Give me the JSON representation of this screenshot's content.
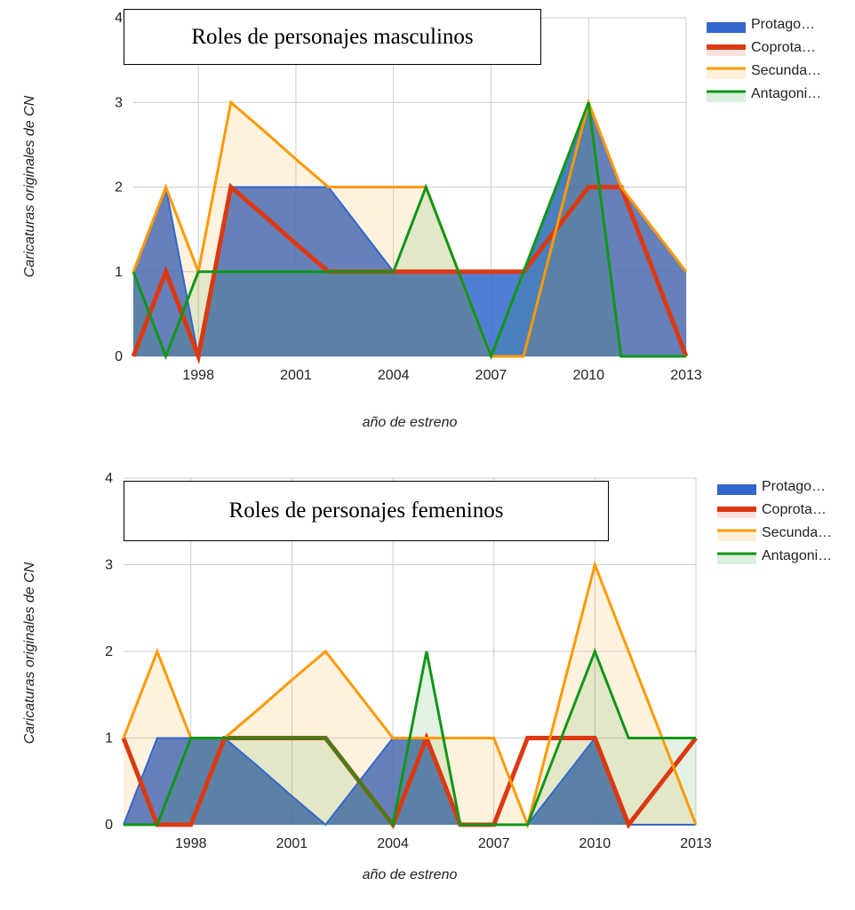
{
  "chart_data": [
    {
      "type": "area",
      "title": "Roles de personajes masculinos",
      "xlabel": "año de estreno",
      "ylabel": "Caricaturas originales de CN",
      "x": [
        1996,
        1997,
        1998,
        1999,
        2000,
        2001,
        2002,
        2003,
        2004,
        2005,
        2006,
        2007,
        2008,
        2009,
        2010,
        2011,
        2012,
        2013
      ],
      "xticks": [
        "1998",
        "2001",
        "2004",
        "2007",
        "2010",
        "2013"
      ],
      "xlim": [
        1996,
        2013
      ],
      "ylim": [
        0,
        4
      ],
      "yticks": [
        "0",
        "1",
        "2",
        "3",
        "4"
      ],
      "grid": true,
      "legend_position": "right",
      "series": [
        {
          "name": "Protago…",
          "color": "#3366cc",
          "style": "area",
          "values": [
            1,
            2,
            0,
            2,
            2,
            2,
            2,
            1.5,
            1,
            1,
            1,
            1,
            1,
            2,
            3,
            2,
            1.5,
            1
          ]
        },
        {
          "name": "Coprota…",
          "color": "#dc3912",
          "style": "line",
          "values": [
            0,
            1,
            0,
            2,
            1.67,
            1.33,
            1,
            1,
            1,
            1,
            1,
            1,
            1,
            1.5,
            2,
            2,
            1,
            0
          ]
        },
        {
          "name": "Secunda…",
          "color": "#ff9900",
          "style": "area",
          "values": [
            1,
            2,
            1,
            3,
            2.67,
            2.33,
            2,
            2,
            2,
            2,
            1,
            0,
            0,
            1.5,
            3,
            2,
            1.5,
            1
          ]
        },
        {
          "name": "Antagoni…",
          "color": "#109618",
          "style": "area",
          "values": [
            1,
            0,
            1,
            1,
            1,
            1,
            1,
            1,
            1,
            2,
            1,
            0,
            1,
            2,
            3,
            0,
            0,
            0
          ]
        }
      ]
    },
    {
      "type": "area",
      "title": "Roles de personajes femeninos",
      "xlabel": "año de estreno",
      "ylabel": "Caricaturas originales de CN",
      "x": [
        1996,
        1997,
        1998,
        1999,
        2000,
        2001,
        2002,
        2003,
        2004,
        2005,
        2006,
        2007,
        2008,
        2009,
        2010,
        2011,
        2012,
        2013
      ],
      "xticks": [
        "1998",
        "2001",
        "2004",
        "2007",
        "2010",
        "2013"
      ],
      "xlim": [
        1996,
        2013
      ],
      "ylim": [
        0,
        4
      ],
      "yticks": [
        "0",
        "1",
        "2",
        "3",
        "4"
      ],
      "grid": true,
      "legend_position": "right",
      "series": [
        {
          "name": "Protago…",
          "color": "#3366cc",
          "style": "area",
          "values": [
            0,
            1,
            1,
            1,
            0.67,
            0.33,
            0,
            0.5,
            1,
            1,
            0,
            0,
            0,
            0.5,
            1,
            0,
            0,
            0
          ]
        },
        {
          "name": "Coprota…",
          "color": "#dc3912",
          "style": "line",
          "values": [
            1,
            0,
            0,
            1,
            1,
            1,
            1,
            0.5,
            0,
            1,
            0,
            0,
            1,
            1,
            1,
            0,
            0.5,
            1
          ]
        },
        {
          "name": "Secunda…",
          "color": "#ff9900",
          "style": "area",
          "values": [
            1,
            2,
            1,
            1,
            1.33,
            1.67,
            2,
            1.5,
            1,
            1,
            1,
            1,
            0,
            1.5,
            3,
            2,
            1,
            0
          ]
        },
        {
          "name": "Antagoni…",
          "color": "#109618",
          "style": "area",
          "values": [
            0,
            0,
            1,
            1,
            1,
            1,
            1,
            0.5,
            0,
            2,
            0,
            0,
            0,
            1,
            2,
            1,
            1,
            1
          ]
        }
      ]
    }
  ]
}
